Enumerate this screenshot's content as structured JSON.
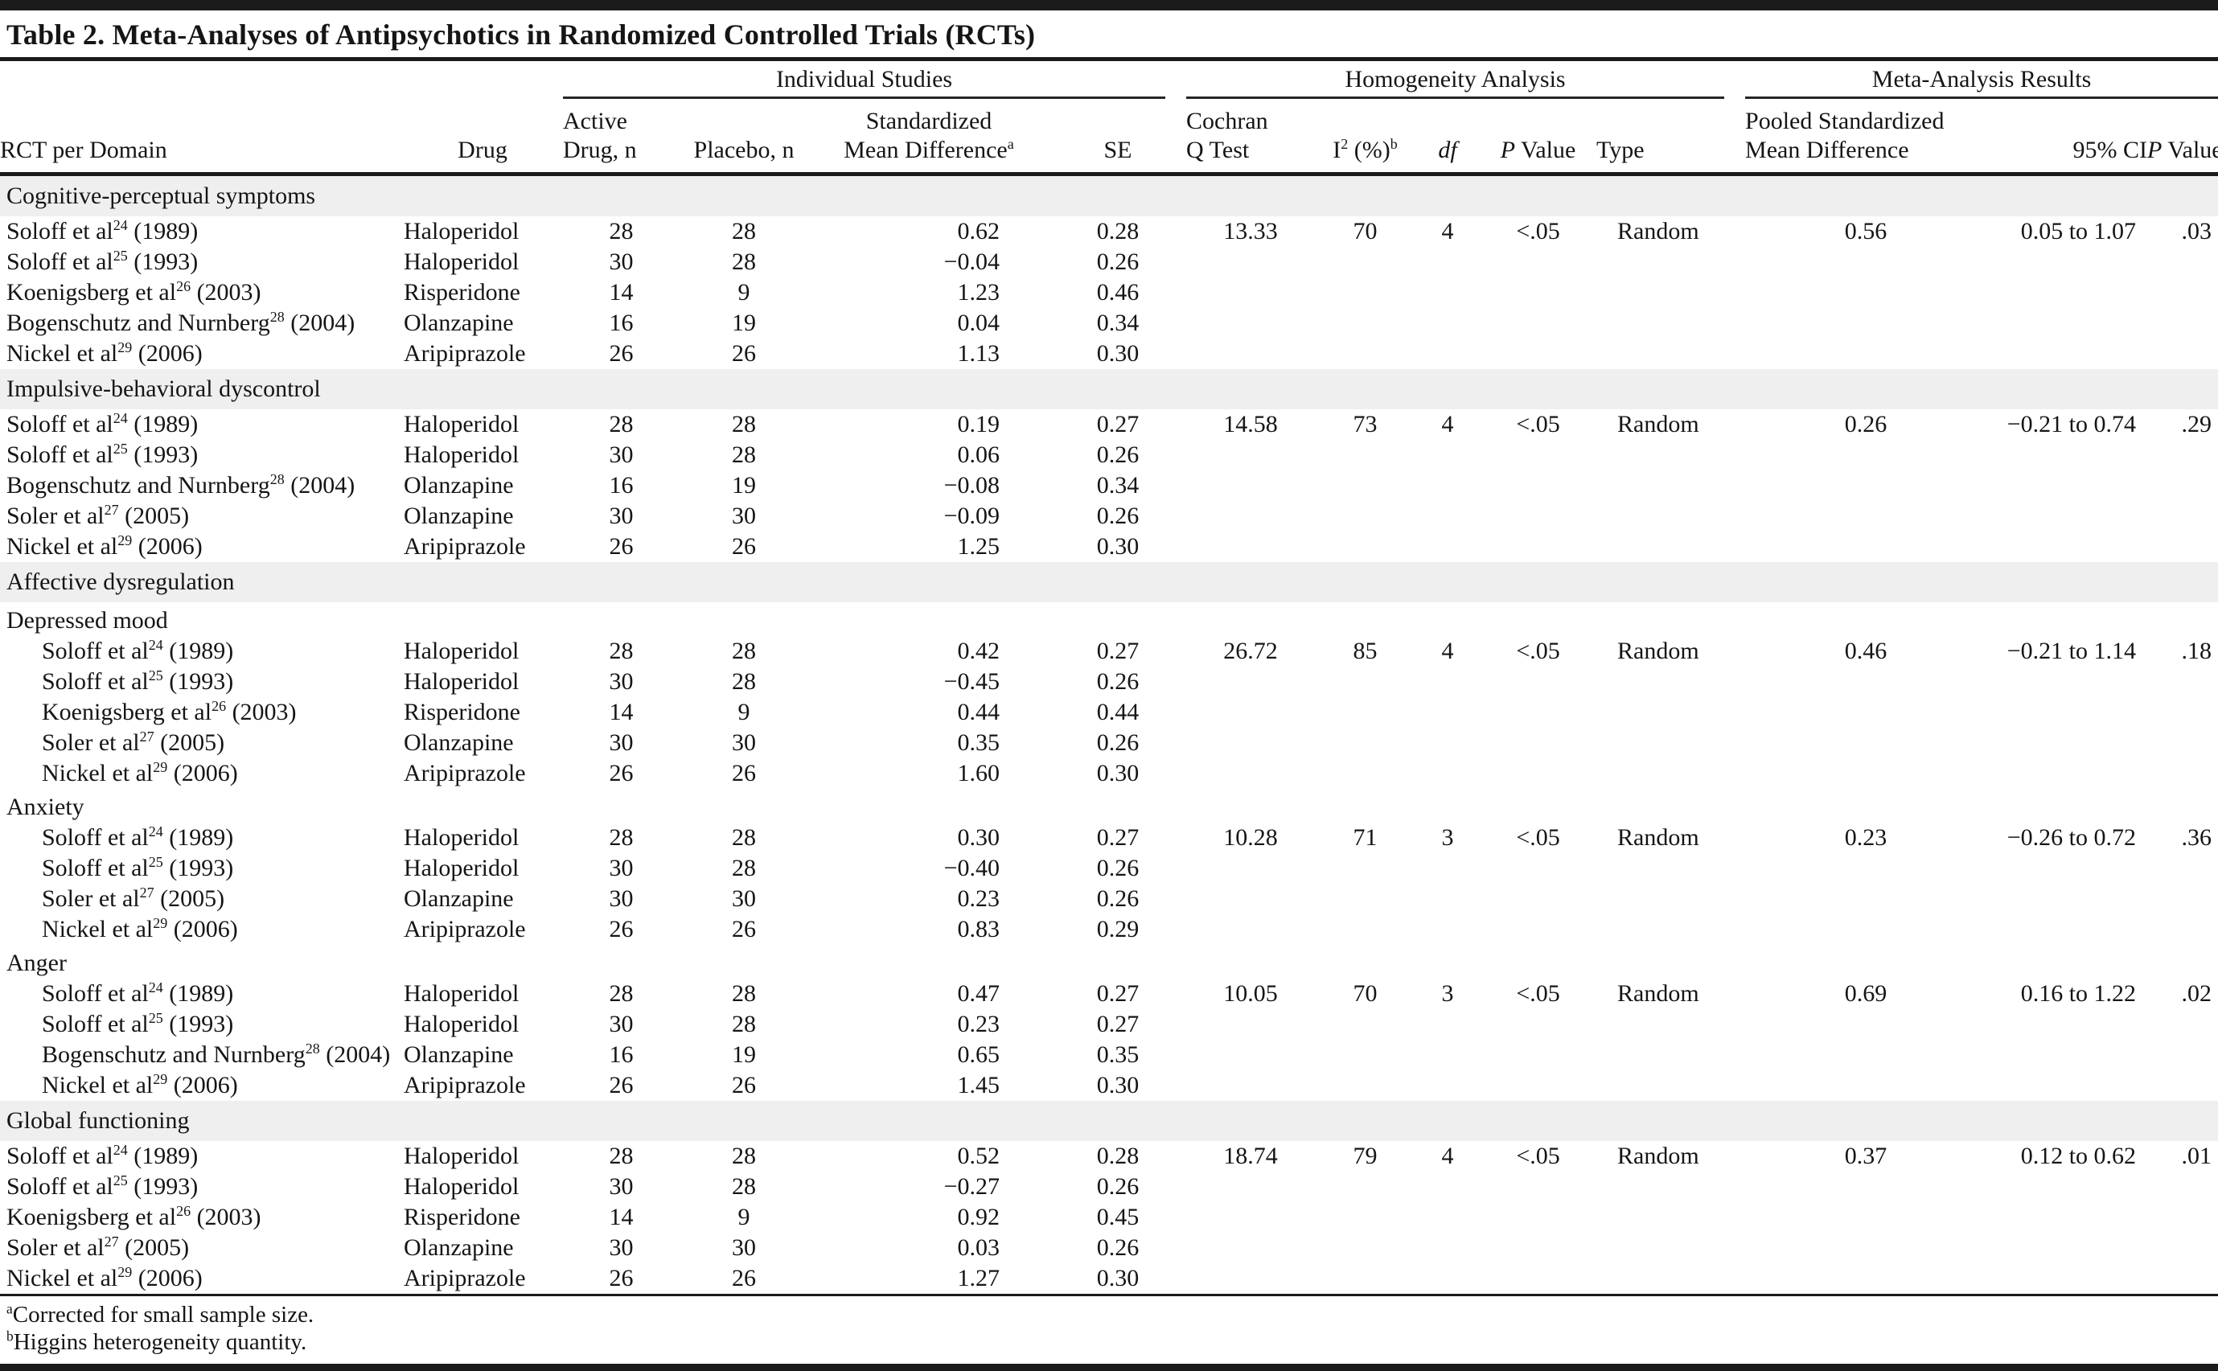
{
  "table": {
    "title": "Table 2. Meta-Analyses of Antipsychotics in Randomized Controlled Trials (RCTs)",
    "groups": [
      "Individual Studies",
      "Homogeneity Analysis",
      "Meta-Analysis Results"
    ],
    "headers": {
      "rct": "RCT per Domain",
      "drug": "Drug",
      "active1": "Active",
      "active2": "Drug, n",
      "placebo": "Placebo, n",
      "smd1": "Standardized",
      "smd2": "Mean Difference",
      "smd_sup": "a",
      "se": "SE",
      "cochran1": "Cochran",
      "cochran2": "Q Test",
      "i2_base": "I",
      "i2_exp": "2",
      "i2_pct": " (%)",
      "i2_sup": "b",
      "df": "df",
      "p_italic": "P",
      "p_rest": " Value",
      "type": "Type",
      "pooled1": "Pooled Standardized",
      "pooled2": "Mean Difference",
      "ci": "95% CI"
    },
    "sections": [
      {
        "label": "Cognitive-perceptual symptoms",
        "subsections": [
          {
            "label": null,
            "indent": false,
            "rows": [
              {
                "study": "Soloff et al",
                "ref": "24",
                "year": "(1989)",
                "drug": "Haloperidol",
                "active_n": "28",
                "placebo_n": "28",
                "smd": "0.62",
                "se": "0.28",
                "hom": {
                  "q": "13.33",
                  "i2": "70",
                  "df": "4",
                  "p": "<.05",
                  "type": "Random"
                },
                "meta": {
                  "pooled": "0.56",
                  "ci": "0.05 to 1.07",
                  "p": ".03"
                }
              },
              {
                "study": "Soloff et al",
                "ref": "25",
                "year": "(1993)",
                "drug": "Haloperidol",
                "active_n": "30",
                "placebo_n": "28",
                "smd": "−0.04",
                "se": "0.26"
              },
              {
                "study": "Koenigsberg et al",
                "ref": "26",
                "year": "(2003)",
                "drug": "Risperidone",
                "active_n": "14",
                "placebo_n": "9",
                "smd": "1.23",
                "se": "0.46"
              },
              {
                "study": "Bogenschutz and Nurnberg",
                "ref": "28",
                "year": "(2004)",
                "drug": "Olanzapine",
                "active_n": "16",
                "placebo_n": "19",
                "smd": "0.04",
                "se": "0.34"
              },
              {
                "study": "Nickel et al",
                "ref": "29",
                "year": "(2006)",
                "drug": "Aripiprazole",
                "active_n": "26",
                "placebo_n": "26",
                "smd": "1.13",
                "se": "0.30"
              }
            ]
          }
        ]
      },
      {
        "label": "Impulsive-behavioral dyscontrol",
        "subsections": [
          {
            "label": null,
            "indent": false,
            "rows": [
              {
                "study": "Soloff et al",
                "ref": "24",
                "year": "(1989)",
                "drug": "Haloperidol",
                "active_n": "28",
                "placebo_n": "28",
                "smd": "0.19",
                "se": "0.27",
                "hom": {
                  "q": "14.58",
                  "i2": "73",
                  "df": "4",
                  "p": "<.05",
                  "type": "Random"
                },
                "meta": {
                  "pooled": "0.26",
                  "ci": "−0.21 to 0.74",
                  "p": ".29"
                }
              },
              {
                "study": "Soloff et al",
                "ref": "25",
                "year": "(1993)",
                "drug": "Haloperidol",
                "active_n": "30",
                "placebo_n": "28",
                "smd": "0.06",
                "se": "0.26"
              },
              {
                "study": "Bogenschutz and Nurnberg",
                "ref": "28",
                "year": "(2004)",
                "drug": "Olanzapine",
                "active_n": "16",
                "placebo_n": "19",
                "smd": "−0.08",
                "se": "0.34"
              },
              {
                "study": "Soler et al",
                "ref": "27",
                "year": "(2005)",
                "drug": "Olanzapine",
                "active_n": "30",
                "placebo_n": "30",
                "smd": "−0.09",
                "se": "0.26"
              },
              {
                "study": "Nickel et al",
                "ref": "29",
                "year": "(2006)",
                "drug": "Aripiprazole",
                "active_n": "26",
                "placebo_n": "26",
                "smd": "1.25",
                "se": "0.30"
              }
            ]
          }
        ]
      },
      {
        "label": "Affective dysregulation",
        "subsections": [
          {
            "label": "Depressed mood",
            "indent": true,
            "rows": [
              {
                "study": "Soloff et al",
                "ref": "24",
                "year": "(1989)",
                "drug": "Haloperidol",
                "active_n": "28",
                "placebo_n": "28",
                "smd": "0.42",
                "se": "0.27",
                "hom": {
                  "q": "26.72",
                  "i2": "85",
                  "df": "4",
                  "p": "<.05",
                  "type": "Random"
                },
                "meta": {
                  "pooled": "0.46",
                  "ci": "−0.21 to 1.14",
                  "p": ".18"
                }
              },
              {
                "study": "Soloff et al",
                "ref": "25",
                "year": "(1993)",
                "drug": "Haloperidol",
                "active_n": "30",
                "placebo_n": "28",
                "smd": "−0.45",
                "se": "0.26"
              },
              {
                "study": "Koenigsberg et al",
                "ref": "26",
                "year": "(2003)",
                "drug": "Risperidone",
                "active_n": "14",
                "placebo_n": "9",
                "smd": "0.44",
                "se": "0.44"
              },
              {
                "study": "Soler et al",
                "ref": "27",
                "year": "(2005)",
                "drug": "Olanzapine",
                "active_n": "30",
                "placebo_n": "30",
                "smd": "0.35",
                "se": "0.26"
              },
              {
                "study": "Nickel et al",
                "ref": "29",
                "year": "(2006)",
                "drug": "Aripiprazole",
                "active_n": "26",
                "placebo_n": "26",
                "smd": "1.60",
                "se": "0.30"
              }
            ]
          },
          {
            "label": "Anxiety",
            "indent": true,
            "rows": [
              {
                "study": "Soloff et al",
                "ref": "24",
                "year": "(1989)",
                "drug": "Haloperidol",
                "active_n": "28",
                "placebo_n": "28",
                "smd": "0.30",
                "se": "0.27",
                "hom": {
                  "q": "10.28",
                  "i2": "71",
                  "df": "3",
                  "p": "<.05",
                  "type": "Random"
                },
                "meta": {
                  "pooled": "0.23",
                  "ci": "−0.26 to 0.72",
                  "p": ".36"
                }
              },
              {
                "study": "Soloff et al",
                "ref": "25",
                "year": "(1993)",
                "drug": "Haloperidol",
                "active_n": "30",
                "placebo_n": "28",
                "smd": "−0.40",
                "se": "0.26"
              },
              {
                "study": "Soler et al",
                "ref": "27",
                "year": "(2005)",
                "drug": "Olanzapine",
                "active_n": "30",
                "placebo_n": "30",
                "smd": "0.23",
                "se": "0.26"
              },
              {
                "study": "Nickel et al",
                "ref": "29",
                "year": "(2006)",
                "drug": "Aripiprazole",
                "active_n": "26",
                "placebo_n": "26",
                "smd": "0.83",
                "se": "0.29"
              }
            ]
          },
          {
            "label": "Anger",
            "indent": true,
            "rows": [
              {
                "study": "Soloff et al",
                "ref": "24",
                "year": "(1989)",
                "drug": "Haloperidol",
                "active_n": "28",
                "placebo_n": "28",
                "smd": "0.47",
                "se": "0.27",
                "hom": {
                  "q": "10.05",
                  "i2": "70",
                  "df": "3",
                  "p": "<.05",
                  "type": "Random"
                },
                "meta": {
                  "pooled": "0.69",
                  "ci": "0.16 to 1.22",
                  "p": ".02"
                }
              },
              {
                "study": "Soloff et al",
                "ref": "25",
                "year": "(1993)",
                "drug": "Haloperidol",
                "active_n": "30",
                "placebo_n": "28",
                "smd": "0.23",
                "se": "0.27"
              },
              {
                "study": "Bogenschutz and Nurnberg",
                "ref": "28",
                "year": "(2004)",
                "drug": "Olanzapine",
                "active_n": "16",
                "placebo_n": "19",
                "smd": "0.65",
                "se": "0.35"
              },
              {
                "study": "Nickel et al",
                "ref": "29",
                "year": "(2006)",
                "drug": "Aripiprazole",
                "active_n": "26",
                "placebo_n": "26",
                "smd": "1.45",
                "se": "0.30"
              }
            ]
          }
        ]
      },
      {
        "label": "Global functioning",
        "subsections": [
          {
            "label": null,
            "indent": false,
            "rows": [
              {
                "study": "Soloff et al",
                "ref": "24",
                "year": "(1989)",
                "drug": "Haloperidol",
                "active_n": "28",
                "placebo_n": "28",
                "smd": "0.52",
                "se": "0.28",
                "hom": {
                  "q": "18.74",
                  "i2": "79",
                  "df": "4",
                  "p": "<.05",
                  "type": "Random"
                },
                "meta": {
                  "pooled": "0.37",
                  "ci": "0.12 to 0.62",
                  "p": ".01"
                }
              },
              {
                "study": "Soloff et al",
                "ref": "25",
                "year": "(1993)",
                "drug": "Haloperidol",
                "active_n": "30",
                "placebo_n": "28",
                "smd": "−0.27",
                "se": "0.26"
              },
              {
                "study": "Koenigsberg et al",
                "ref": "26",
                "year": "(2003)",
                "drug": "Risperidone",
                "active_n": "14",
                "placebo_n": "9",
                "smd": "0.92",
                "se": "0.45"
              },
              {
                "study": "Soler et al",
                "ref": "27",
                "year": "(2005)",
                "drug": "Olanzapine",
                "active_n": "30",
                "placebo_n": "30",
                "smd": "0.03",
                "se": "0.26"
              },
              {
                "study": "Nickel et al",
                "ref": "29",
                "year": "(2006)",
                "drug": "Aripiprazole",
                "active_n": "26",
                "placebo_n": "26",
                "smd": "1.27",
                "se": "0.30"
              }
            ]
          }
        ]
      }
    ],
    "footnotes": [
      {
        "sup": "a",
        "text": "Corrected for small sample size."
      },
      {
        "sup": "b",
        "text": "Higgins heterogeneity quantity."
      }
    ]
  }
}
